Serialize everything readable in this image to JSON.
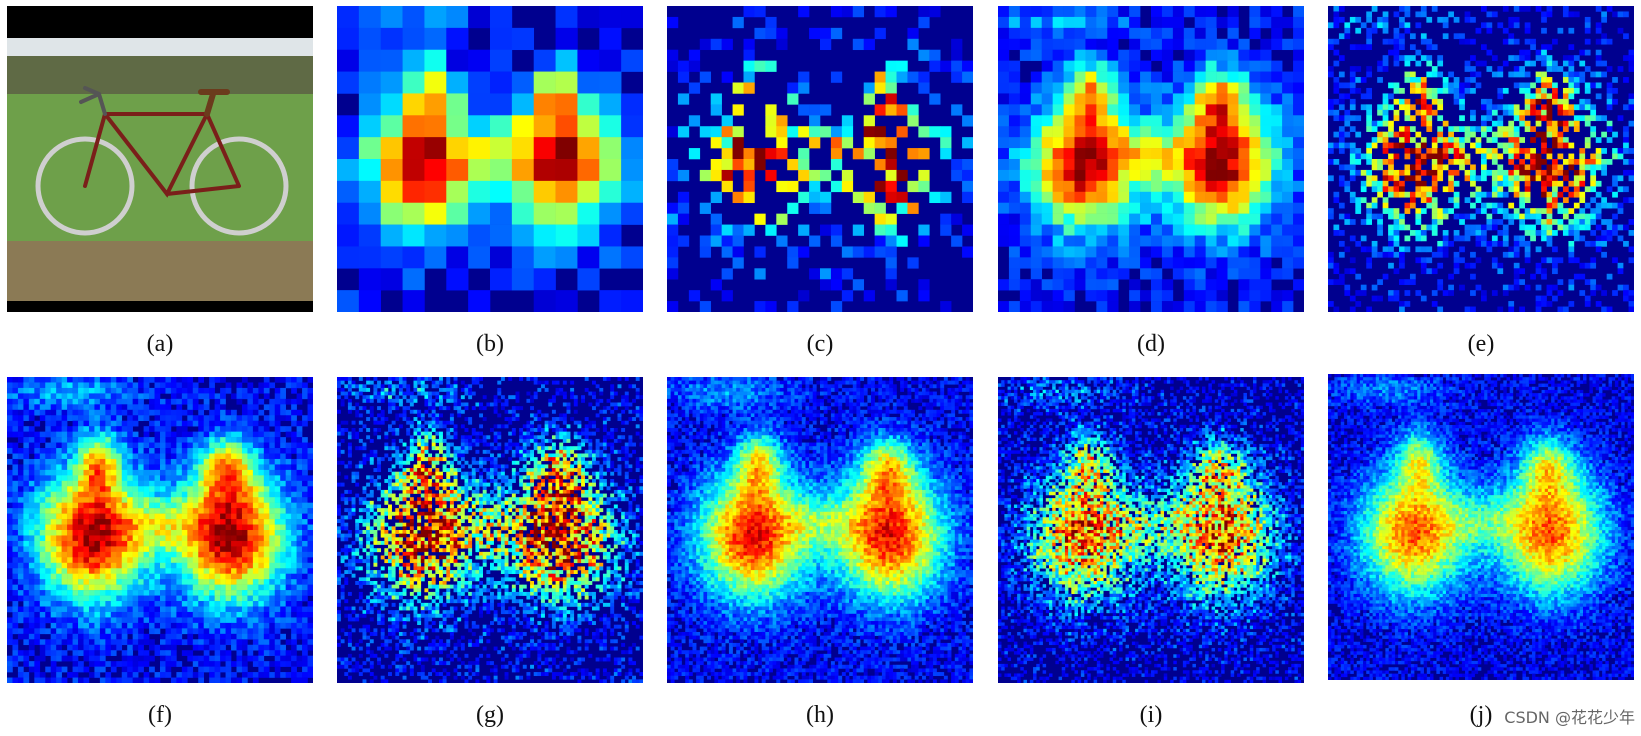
{
  "figure": {
    "captions": [
      "(a)",
      "(b)",
      "(c)",
      "(d)",
      "(e)",
      "(f)",
      "(g)",
      "(h)",
      "(i)",
      "(j)"
    ],
    "watermark": "CSDN @花花少年",
    "panels": [
      {
        "kind": "photo"
      },
      {
        "kind": "heatmap",
        "grid": 14,
        "fill": "full",
        "seed": 11,
        "blob_strength": 1.0,
        "density": 1.0
      },
      {
        "kind": "heatmap",
        "grid": 28,
        "fill": "sparse",
        "seed": 23,
        "blob_strength": 1.0,
        "density": 0.28
      },
      {
        "kind": "heatmap",
        "grid": 28,
        "fill": "full",
        "seed": 37,
        "blob_strength": 1.0,
        "density": 1.0
      },
      {
        "kind": "heatmap",
        "grid": 56,
        "fill": "sparse",
        "seed": 41,
        "blob_strength": 1.0,
        "density": 0.35
      },
      {
        "kind": "heatmap",
        "grid": 56,
        "fill": "full",
        "seed": 53,
        "blob_strength": 1.0,
        "density": 1.0
      },
      {
        "kind": "heatmap",
        "grid": 84,
        "fill": "sparse",
        "seed": 67,
        "blob_strength": 1.0,
        "density": 0.45
      },
      {
        "kind": "heatmap",
        "grid": 84,
        "fill": "full",
        "seed": 71,
        "blob_strength": 0.9,
        "density": 1.0
      },
      {
        "kind": "heatmap",
        "grid": 96,
        "fill": "sparse",
        "seed": 83,
        "blob_strength": 0.85,
        "density": 0.6
      },
      {
        "kind": "heatmap",
        "grid": 96,
        "fill": "full",
        "seed": 97,
        "blob_strength": 0.8,
        "density": 1.0
      }
    ]
  }
}
